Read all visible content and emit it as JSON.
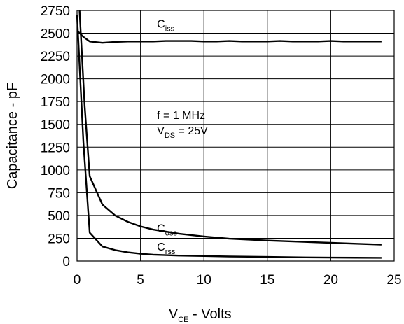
{
  "chart_data": {
    "type": "line",
    "title": "",
    "xlabel": {
      "main": "V",
      "sub": "CE",
      "rest": " - Volts"
    },
    "ylabel": "Capacitance - pF",
    "xlim": [
      0,
      25
    ],
    "ylim": [
      0,
      2750
    ],
    "xticks": [
      0,
      5,
      10,
      15,
      20,
      25
    ],
    "yticks": [
      0,
      250,
      500,
      750,
      1000,
      1250,
      1500,
      1750,
      2000,
      2250,
      2500,
      2750
    ],
    "grid": true,
    "annotation": {
      "line1": "f = 1 MHz",
      "line2": {
        "main": "V",
        "sub": "DS",
        "rest": " = 25V"
      }
    },
    "series": [
      {
        "name": {
          "main": "C",
          "sub": "iss"
        },
        "x": [
          0,
          0.5,
          1,
          2,
          3,
          4,
          5,
          6,
          7,
          8,
          9,
          10,
          11,
          12,
          13,
          14,
          15,
          16,
          17,
          18,
          19,
          20,
          21,
          22,
          23,
          24
        ],
        "y": [
          2530,
          2460,
          2410,
          2395,
          2405,
          2410,
          2410,
          2410,
          2415,
          2415,
          2415,
          2410,
          2410,
          2415,
          2410,
          2410,
          2410,
          2415,
          2410,
          2410,
          2410,
          2415,
          2410,
          2410,
          2410,
          2410
        ]
      },
      {
        "name": {
          "main": "C",
          "sub": "oss"
        },
        "x": [
          0.2,
          0.6,
          1,
          2,
          3,
          4,
          5,
          6,
          8,
          10,
          12,
          15,
          18,
          20,
          22,
          24
        ],
        "y": [
          2750,
          1700,
          930,
          620,
          500,
          430,
          380,
          345,
          300,
          270,
          245,
          225,
          210,
          200,
          190,
          180
        ]
      },
      {
        "name": {
          "main": "C",
          "sub": "rss"
        },
        "x": [
          0,
          0.5,
          1,
          2,
          3,
          4,
          5,
          6,
          8,
          10,
          12,
          15,
          18,
          20,
          24
        ],
        "y": [
          2700,
          1300,
          310,
          160,
          120,
          95,
          80,
          70,
          60,
          55,
          50,
          45,
          40,
          38,
          35
        ]
      }
    ]
  }
}
